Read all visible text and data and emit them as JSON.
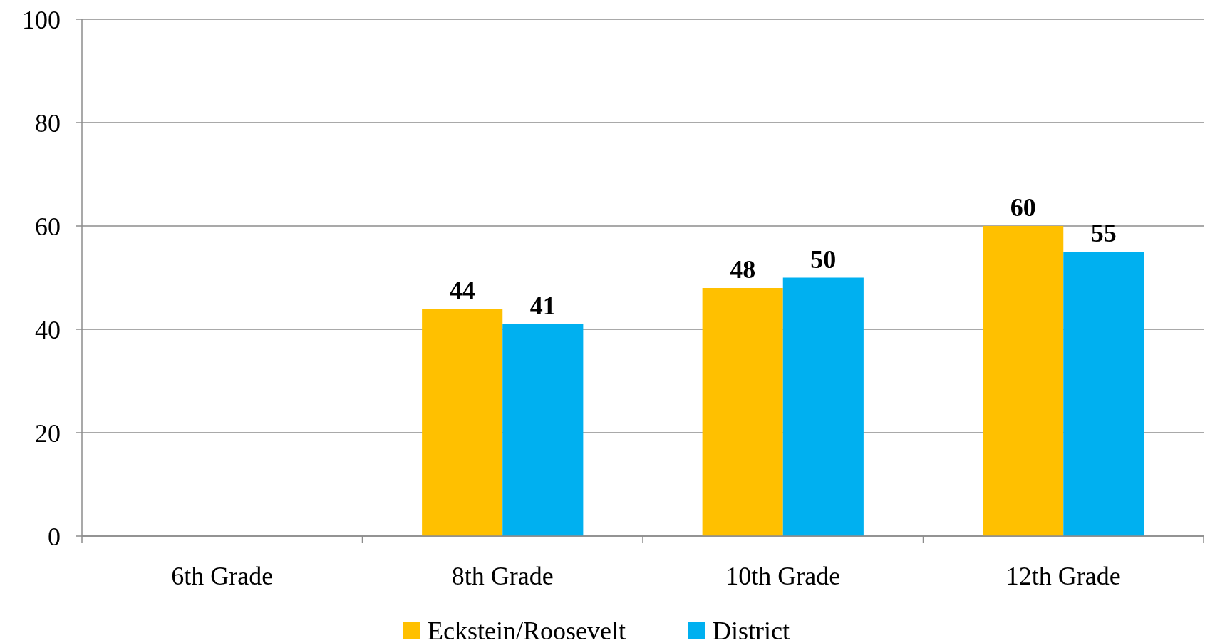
{
  "chart_data": {
    "type": "bar",
    "categories": [
      "6th Grade",
      "8th Grade",
      "10th Grade",
      "12th Grade"
    ],
    "series": [
      {
        "name": "Eckstein/Roosevelt",
        "color": "#ffc000",
        "values": [
          null,
          44,
          48,
          60
        ]
      },
      {
        "name": "District",
        "color": "#00b0f0",
        "values": [
          null,
          41,
          50,
          55
        ]
      }
    ],
    "ylim": [
      0,
      100
    ],
    "yticks": [
      0,
      20,
      40,
      60,
      80,
      100
    ],
    "grid": "y",
    "legend": "bottom",
    "data_labels": true
  }
}
